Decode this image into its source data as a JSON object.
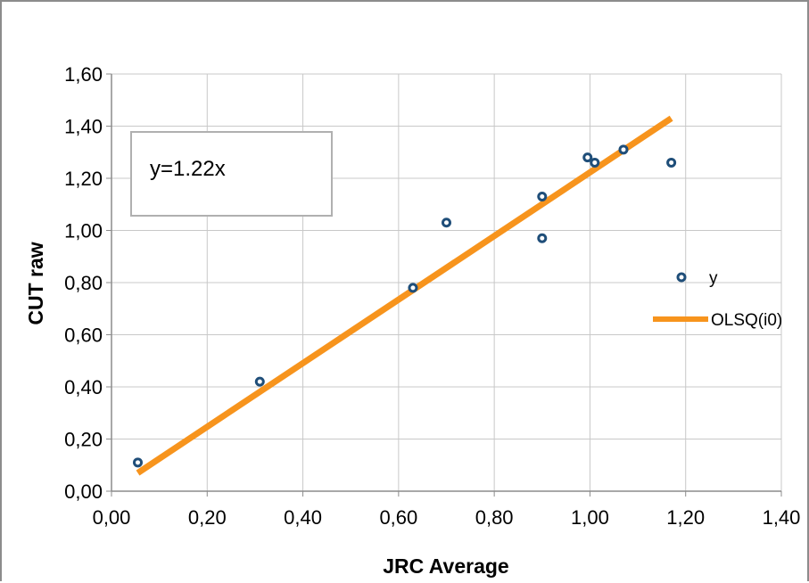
{
  "chart_data": {
    "type": "scatter",
    "xlabel": "JRC Average",
    "ylabel": "CUT raw",
    "xlim": [
      0,
      1.4
    ],
    "ylim": [
      0,
      1.6
    ],
    "xticks": [
      "0,00",
      "0,20",
      "0,40",
      "0,60",
      "0,80",
      "1,00",
      "1,20",
      "1,40"
    ],
    "yticks": [
      "0,00",
      "0,20",
      "0,40",
      "0,60",
      "0,80",
      "1,00",
      "1,20",
      "1,40",
      "1,60"
    ],
    "grid": true,
    "legend_position": "right",
    "annotation": "y=1.22x",
    "series": [
      {
        "name": "y",
        "kind": "scatter",
        "color": "#1f4e79",
        "x": [
          0.055,
          0.31,
          0.63,
          0.7,
          0.9,
          0.9,
          0.995,
          1.01,
          1.07,
          1.17
        ],
        "y": [
          0.11,
          0.42,
          0.78,
          1.03,
          1.13,
          0.97,
          1.28,
          1.26,
          1.31,
          1.26
        ]
      },
      {
        "name": "OLSQ(i0)",
        "kind": "line",
        "color": "#f7941d",
        "x": [
          0.055,
          1.17
        ],
        "y": [
          0.07,
          1.43
        ]
      }
    ]
  }
}
